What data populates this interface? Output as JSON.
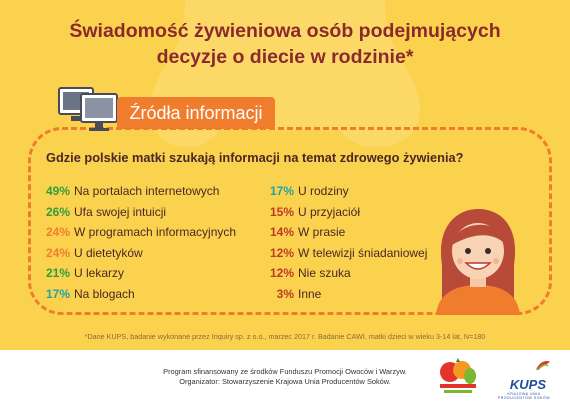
{
  "title": {
    "line1": "Świadomość żywieniowa osób podejmujących",
    "line2": "decyzje o diecie w rodzinie*"
  },
  "tag": {
    "label": "Źródła informacji"
  },
  "question": "Gdzie polskie matki szukają informacji na temat zdrowego żywienia?",
  "left_items": [
    {
      "pct": "49%",
      "label": "Na portalach internetowych",
      "color": "#2e9e3e"
    },
    {
      "pct": "26%",
      "label": "Ufa swojej intuicji",
      "color": "#2e9e3e"
    },
    {
      "pct": "24%",
      "label": "W programach informacyjnych",
      "color": "#f07d2d"
    },
    {
      "pct": "24%",
      "label": "U dietetyków",
      "color": "#f07d2d"
    },
    {
      "pct": "21%",
      "label": "U lekarzy",
      "color": "#2e9e3e"
    },
    {
      "pct": "17%",
      "label": "Na blogach",
      "color": "#1fa3a8"
    }
  ],
  "right_items": [
    {
      "pct": "17%",
      "label": "U rodziny",
      "color": "#1fa3a8"
    },
    {
      "pct": "15%",
      "label": "U przyjaciół",
      "color": "#c0392b"
    },
    {
      "pct": "14%",
      "label": "W prasie",
      "color": "#c0392b"
    },
    {
      "pct": "12%",
      "label": "W telewizji śniadaniowej",
      "color": "#c0392b"
    },
    {
      "pct": "12%",
      "label": "Nie szuka",
      "color": "#c0392b"
    },
    {
      "pct": "3%",
      "label": "Inne",
      "color": "#c0392b"
    }
  ],
  "footnote": "*Dane KUPS, badanie wykonane przez Inquiry sp. z o.o., marzec 2017 r. Badanie CAWI, matki dzieci w wieku 3-14 lat, N=180",
  "footer": {
    "line1": "Program sfinansowany ze środków Funduszu Promocji Owoców i Warzyw.",
    "line2": "Organizator: Stowarzyszenie Krajowa Unia Producentów Soków."
  },
  "logos": {
    "kups": "KUPS",
    "kups_sub1": "KRAJOWA UNIA",
    "kups_sub2": "PRODUCENTÓW SOKÓW"
  },
  "colors": {
    "background": "#fbd24e",
    "title": "#8a2a2e",
    "accent": "#f07d2d",
    "text": "#4a2626"
  }
}
